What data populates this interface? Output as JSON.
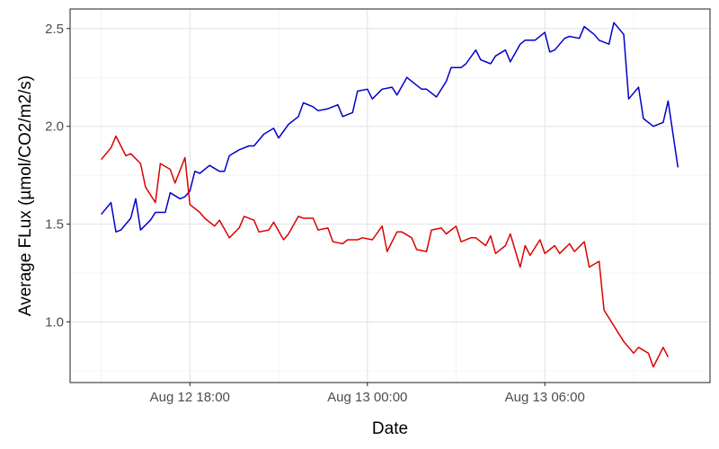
{
  "chart_data": {
    "type": "line",
    "xlabel": "Date",
    "ylabel": "Average FLux (µmol/CO2/m2/s)",
    "x_ticks": [
      {
        "label": "Aug 12 18:00",
        "value": "2024-08-12T18:00"
      },
      {
        "label": "Aug 13 00:00",
        "value": "2024-08-13T00:00"
      },
      {
        "label": "Aug 13 06:00",
        "value": "2024-08-13T06:00"
      }
    ],
    "y_ticks": [
      1.0,
      1.5,
      2.0,
      2.5
    ],
    "xlim": [
      "2024-08-12T13:57",
      "2024-08-13T11:35"
    ],
    "ylim": [
      0.69,
      2.6
    ],
    "grid": true,
    "legend": "none",
    "series": [
      {
        "color": "#0000cc",
        "points": [
          [
            "2024-08-12T15:00",
            1.55
          ],
          [
            "2024-08-12T15:20",
            1.61
          ],
          [
            "2024-08-12T15:30",
            1.46
          ],
          [
            "2024-08-12T15:40",
            1.47
          ],
          [
            "2024-08-12T16:00",
            1.53
          ],
          [
            "2024-08-12T16:10",
            1.63
          ],
          [
            "2024-08-12T16:20",
            1.47
          ],
          [
            "2024-08-12T16:40",
            1.52
          ],
          [
            "2024-08-12T16:50",
            1.56
          ],
          [
            "2024-08-12T17:10",
            1.56
          ],
          [
            "2024-08-12T17:20",
            1.66
          ],
          [
            "2024-08-12T17:40",
            1.63
          ],
          [
            "2024-08-12T17:50",
            1.64
          ],
          [
            "2024-08-12T18:00",
            1.67
          ],
          [
            "2024-08-12T18:10",
            1.77
          ],
          [
            "2024-08-12T18:20",
            1.76
          ],
          [
            "2024-08-12T18:40",
            1.8
          ],
          [
            "2024-08-12T19:00",
            1.77
          ],
          [
            "2024-08-12T19:10",
            1.77
          ],
          [
            "2024-08-12T19:20",
            1.85
          ],
          [
            "2024-08-12T19:40",
            1.88
          ],
          [
            "2024-08-12T20:00",
            1.9
          ],
          [
            "2024-08-12T20:10",
            1.9
          ],
          [
            "2024-08-12T20:30",
            1.96
          ],
          [
            "2024-08-12T20:50",
            1.99
          ],
          [
            "2024-08-12T21:00",
            1.94
          ],
          [
            "2024-08-12T21:20",
            2.01
          ],
          [
            "2024-08-12T21:40",
            2.05
          ],
          [
            "2024-08-12T21:50",
            2.12
          ],
          [
            "2024-08-12T22:10",
            2.1
          ],
          [
            "2024-08-12T22:20",
            2.08
          ],
          [
            "2024-08-12T22:40",
            2.09
          ],
          [
            "2024-08-12T23:00",
            2.11
          ],
          [
            "2024-08-12T23:10",
            2.05
          ],
          [
            "2024-08-12T23:30",
            2.07
          ],
          [
            "2024-08-12T23:40",
            2.18
          ],
          [
            "2024-08-13T00:00",
            2.19
          ],
          [
            "2024-08-13T00:10",
            2.14
          ],
          [
            "2024-08-13T00:30",
            2.19
          ],
          [
            "2024-08-13T00:50",
            2.2
          ],
          [
            "2024-08-13T01:00",
            2.16
          ],
          [
            "2024-08-13T01:20",
            2.25
          ],
          [
            "2024-08-13T01:30",
            2.23
          ],
          [
            "2024-08-13T01:50",
            2.19
          ],
          [
            "2024-08-13T02:00",
            2.19
          ],
          [
            "2024-08-13T02:20",
            2.15
          ],
          [
            "2024-08-13T02:40",
            2.23
          ],
          [
            "2024-08-13T02:50",
            2.3
          ],
          [
            "2024-08-13T03:10",
            2.3
          ],
          [
            "2024-08-13T03:20",
            2.32
          ],
          [
            "2024-08-13T03:40",
            2.39
          ],
          [
            "2024-08-13T03:50",
            2.34
          ],
          [
            "2024-08-13T04:10",
            2.32
          ],
          [
            "2024-08-13T04:20",
            2.36
          ],
          [
            "2024-08-13T04:40",
            2.39
          ],
          [
            "2024-08-13T04:50",
            2.33
          ],
          [
            "2024-08-13T05:10",
            2.42
          ],
          [
            "2024-08-13T05:20",
            2.44
          ],
          [
            "2024-08-13T05:40",
            2.44
          ],
          [
            "2024-08-13T06:00",
            2.48
          ],
          [
            "2024-08-13T06:10",
            2.38
          ],
          [
            "2024-08-13T06:20",
            2.39
          ],
          [
            "2024-08-13T06:40",
            2.45
          ],
          [
            "2024-08-13T06:50",
            2.46
          ],
          [
            "2024-08-13T07:10",
            2.45
          ],
          [
            "2024-08-13T07:20",
            2.51
          ],
          [
            "2024-08-13T07:40",
            2.47
          ],
          [
            "2024-08-13T07:50",
            2.44
          ],
          [
            "2024-08-13T08:10",
            2.42
          ],
          [
            "2024-08-13T08:20",
            2.53
          ],
          [
            "2024-08-13T08:40",
            2.47
          ],
          [
            "2024-08-13T08:50",
            2.14
          ],
          [
            "2024-08-13T09:10",
            2.2
          ],
          [
            "2024-08-13T09:20",
            2.04
          ],
          [
            "2024-08-13T09:40",
            2.0
          ],
          [
            "2024-08-13T10:00",
            2.02
          ],
          [
            "2024-08-13T10:10",
            2.13
          ],
          [
            "2024-08-13T10:30",
            1.79
          ]
        ]
      },
      {
        "color": "#dd0000",
        "points": [
          [
            "2024-08-12T15:00",
            1.83
          ],
          [
            "2024-08-12T15:20",
            1.89
          ],
          [
            "2024-08-12T15:30",
            1.95
          ],
          [
            "2024-08-12T15:50",
            1.85
          ],
          [
            "2024-08-12T16:00",
            1.86
          ],
          [
            "2024-08-12T16:20",
            1.81
          ],
          [
            "2024-08-12T16:30",
            1.69
          ],
          [
            "2024-08-12T16:50",
            1.61
          ],
          [
            "2024-08-12T17:00",
            1.81
          ],
          [
            "2024-08-12T17:20",
            1.78
          ],
          [
            "2024-08-12T17:30",
            1.71
          ],
          [
            "2024-08-12T17:50",
            1.84
          ],
          [
            "2024-08-12T18:00",
            1.6
          ],
          [
            "2024-08-12T18:20",
            1.56
          ],
          [
            "2024-08-12T18:30",
            1.53
          ],
          [
            "2024-08-12T18:50",
            1.49
          ],
          [
            "2024-08-12T19:00",
            1.52
          ],
          [
            "2024-08-12T19:20",
            1.43
          ],
          [
            "2024-08-12T19:40",
            1.48
          ],
          [
            "2024-08-12T19:50",
            1.54
          ],
          [
            "2024-08-12T20:10",
            1.52
          ],
          [
            "2024-08-12T20:20",
            1.46
          ],
          [
            "2024-08-12T20:40",
            1.47
          ],
          [
            "2024-08-12T20:50",
            1.51
          ],
          [
            "2024-08-12T21:10",
            1.42
          ],
          [
            "2024-08-12T21:20",
            1.45
          ],
          [
            "2024-08-12T21:40",
            1.54
          ],
          [
            "2024-08-12T21:50",
            1.53
          ],
          [
            "2024-08-12T22:10",
            1.53
          ],
          [
            "2024-08-12T22:20",
            1.47
          ],
          [
            "2024-08-12T22:40",
            1.48
          ],
          [
            "2024-08-12T22:50",
            1.41
          ],
          [
            "2024-08-12T23:10",
            1.4
          ],
          [
            "2024-08-12T23:20",
            1.42
          ],
          [
            "2024-08-12T23:40",
            1.42
          ],
          [
            "2024-08-12T23:50",
            1.43
          ],
          [
            "2024-08-13T00:10",
            1.42
          ],
          [
            "2024-08-13T00:30",
            1.49
          ],
          [
            "2024-08-13T00:40",
            1.36
          ],
          [
            "2024-08-13T01:00",
            1.46
          ],
          [
            "2024-08-13T01:10",
            1.46
          ],
          [
            "2024-08-13T01:30",
            1.43
          ],
          [
            "2024-08-13T01:40",
            1.37
          ],
          [
            "2024-08-13T02:00",
            1.36
          ],
          [
            "2024-08-13T02:10",
            1.47
          ],
          [
            "2024-08-13T02:30",
            1.48
          ],
          [
            "2024-08-13T02:40",
            1.45
          ],
          [
            "2024-08-13T03:00",
            1.49
          ],
          [
            "2024-08-13T03:10",
            1.41
          ],
          [
            "2024-08-13T03:30",
            1.43
          ],
          [
            "2024-08-13T03:40",
            1.43
          ],
          [
            "2024-08-13T04:00",
            1.39
          ],
          [
            "2024-08-13T04:10",
            1.44
          ],
          [
            "2024-08-13T04:20",
            1.35
          ],
          [
            "2024-08-13T04:40",
            1.39
          ],
          [
            "2024-08-13T04:50",
            1.45
          ],
          [
            "2024-08-13T05:10",
            1.28
          ],
          [
            "2024-08-13T05:20",
            1.39
          ],
          [
            "2024-08-13T05:30",
            1.34
          ],
          [
            "2024-08-13T05:50",
            1.42
          ],
          [
            "2024-08-13T06:00",
            1.35
          ],
          [
            "2024-08-13T06:20",
            1.39
          ],
          [
            "2024-08-13T06:30",
            1.35
          ],
          [
            "2024-08-13T06:50",
            1.4
          ],
          [
            "2024-08-13T07:00",
            1.36
          ],
          [
            "2024-08-13T07:20",
            1.41
          ],
          [
            "2024-08-13T07:30",
            1.28
          ],
          [
            "2024-08-13T07:50",
            1.31
          ],
          [
            "2024-08-13T08:00",
            1.06
          ],
          [
            "2024-08-13T08:20",
            0.98
          ],
          [
            "2024-08-13T08:40",
            0.9
          ],
          [
            "2024-08-13T09:00",
            0.84
          ],
          [
            "2024-08-13T09:10",
            0.87
          ],
          [
            "2024-08-13T09:30",
            0.84
          ],
          [
            "2024-08-13T09:40",
            0.77
          ],
          [
            "2024-08-13T10:00",
            0.87
          ],
          [
            "2024-08-13T10:10",
            0.82
          ]
        ]
      }
    ]
  }
}
